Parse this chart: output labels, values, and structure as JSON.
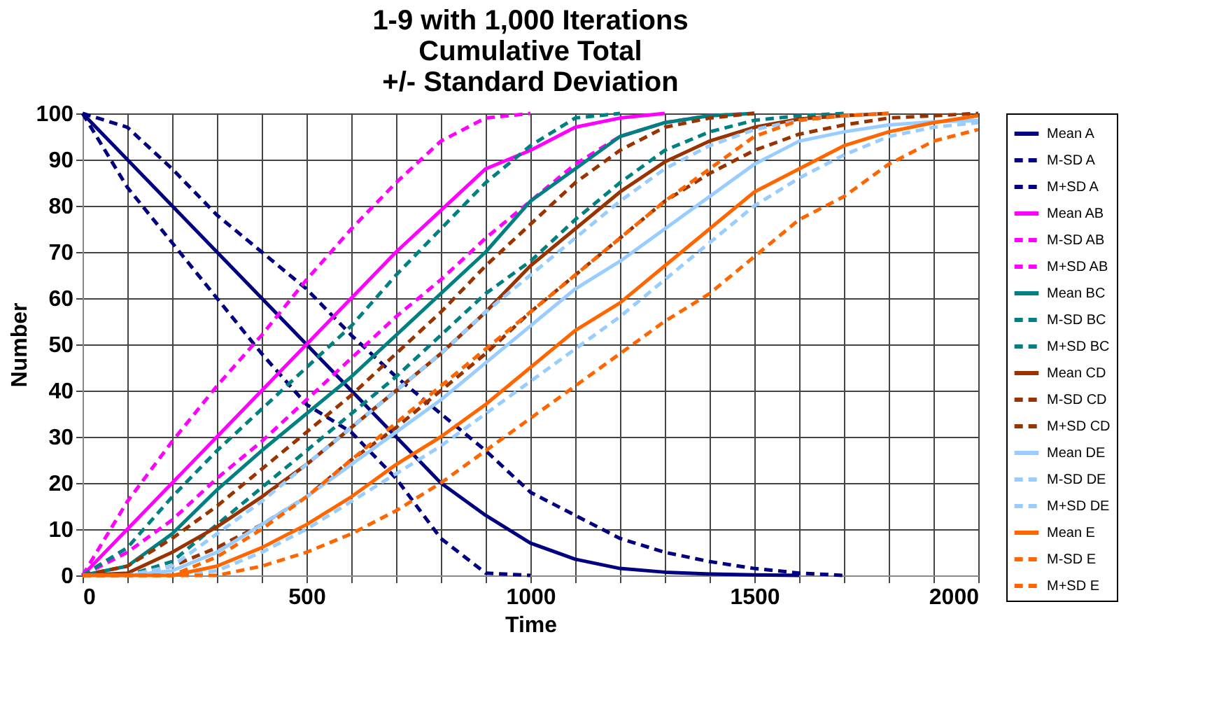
{
  "chart_data": {
    "type": "line",
    "title": [
      "1-9 with 1,000 Iterations",
      "Cumulative Total",
      "+/- Standard Deviation"
    ],
    "xlabel": "Time",
    "ylabel": "Number",
    "x": [
      0,
      100,
      200,
      300,
      400,
      500,
      600,
      700,
      800,
      900,
      1000,
      1100,
      1200,
      1300,
      1400,
      1500,
      1600,
      1700,
      1800,
      1900,
      2000
    ],
    "xlim": [
      0,
      2000
    ],
    "ylim": [
      0,
      100
    ],
    "xticks": [
      0,
      {
        "value": 100,
        "label": null
      },
      {
        "value": 200,
        "label": null
      },
      {
        "value": 300,
        "label": null
      },
      {
        "value": 400,
        "label": null
      },
      500,
      {
        "value": 600,
        "label": null
      },
      {
        "value": 700,
        "label": null
      },
      {
        "value": 800,
        "label": null
      },
      {
        "value": 900,
        "label": null
      },
      1000,
      {
        "value": 1100,
        "label": null
      },
      {
        "value": 1200,
        "label": null
      },
      {
        "value": 1300,
        "label": null
      },
      {
        "value": 1400,
        "label": null
      },
      1500,
      {
        "value": 1600,
        "label": null
      },
      {
        "value": 1700,
        "label": null
      },
      {
        "value": 1800,
        "label": null
      },
      {
        "value": 1900,
        "label": null
      },
      2000
    ],
    "yticks": [
      0,
      10,
      20,
      30,
      40,
      50,
      60,
      70,
      80,
      90,
      100
    ],
    "grid": true,
    "legend": "right",
    "marker": "none",
    "series": [
      {
        "name": "Mean A",
        "color": "#000080",
        "line_style": "solid",
        "values": [
          100,
          90,
          80,
          70,
          60,
          50,
          40,
          30,
          20,
          13,
          7,
          3.5,
          1.5,
          0.7,
          0.3,
          0.1,
          0,
          null,
          null,
          null,
          null
        ]
      },
      {
        "name": "M-SD A",
        "color": "#000080",
        "line_style": "dashed",
        "values": [
          100,
          84,
          72,
          60,
          48,
          37,
          31,
          21,
          8,
          0.5,
          0,
          null,
          null,
          null,
          null,
          null,
          null,
          null,
          null,
          null,
          null
        ]
      },
      {
        "name": "M+SD A",
        "color": "#000080",
        "line_style": "dashed",
        "values": [
          100,
          97,
          88,
          78,
          70,
          62,
          52,
          43,
          35,
          27,
          18,
          13,
          8,
          5,
          3,
          1.5,
          0.5,
          0,
          null,
          null,
          null
        ]
      },
      {
        "name": "Mean AB",
        "color": "#ff00ff",
        "line_style": "solid",
        "values": [
          0,
          10,
          20,
          30,
          40,
          50,
          60,
          70,
          79,
          88,
          92,
          97,
          99,
          100,
          null,
          null,
          null,
          null,
          null,
          null,
          null
        ]
      },
      {
        "name": "M-SD AB",
        "color": "#ff00ff",
        "line_style": "dashed",
        "values": [
          0,
          5,
          12,
          21,
          29,
          38,
          47,
          56,
          64,
          73,
          81,
          89,
          95,
          98,
          99.5,
          100,
          null,
          null,
          null,
          null,
          null
        ]
      },
      {
        "name": "M+SD AB",
        "color": "#ff00ff",
        "line_style": "dashed",
        "values": [
          0,
          16,
          29,
          41,
          52,
          64,
          75,
          85,
          94,
          99,
          100,
          null,
          null,
          null,
          null,
          null,
          null,
          null,
          null,
          null,
          null
        ]
      },
      {
        "name": "Mean BC",
        "color": "#008080",
        "line_style": "solid",
        "values": [
          0,
          2,
          9,
          18.5,
          27,
          35,
          43,
          52,
          61,
          70,
          81,
          88,
          95,
          98,
          99.5,
          100,
          null,
          null,
          null,
          null,
          null
        ]
      },
      {
        "name": "M-SD BC",
        "color": "#008080",
        "line_style": "dashed",
        "values": [
          0,
          0,
          3,
          11,
          19,
          27,
          35,
          43,
          52,
          61,
          68,
          77,
          85,
          92,
          96,
          98.5,
          99.5,
          100,
          null,
          null,
          null
        ]
      },
      {
        "name": "M+SD BC",
        "color": "#008080",
        "line_style": "dashed",
        "values": [
          0,
          6,
          17,
          27,
          36,
          45,
          54,
          65,
          75,
          85,
          93,
          99,
          100,
          null,
          null,
          null,
          null,
          null,
          null,
          null,
          null
        ]
      },
      {
        "name": "Mean CD",
        "color": "#993300",
        "line_style": "solid",
        "values": [
          0,
          0.5,
          5,
          10.5,
          17,
          24,
          32,
          40,
          48,
          57,
          67,
          75,
          83,
          89.5,
          94,
          97,
          98.8,
          99.5,
          100,
          null,
          null
        ]
      },
      {
        "name": "M-SD CD",
        "color": "#993300",
        "line_style": "dashed",
        "values": [
          0,
          0,
          2,
          6,
          11,
          17,
          25,
          32,
          40,
          48,
          57,
          65,
          73,
          81,
          87,
          92,
          95.5,
          97.5,
          99,
          99.5,
          100
        ]
      },
      {
        "name": "M+SD CD",
        "color": "#993300",
        "line_style": "dashed",
        "values": [
          0,
          2,
          8,
          15,
          23,
          31,
          39,
          48,
          57,
          67,
          76,
          85,
          92,
          97,
          99,
          100,
          null,
          null,
          null,
          null,
          null
        ]
      },
      {
        "name": "Mean DE",
        "color": "#99ccff",
        "line_style": "solid",
        "values": [
          0,
          0,
          1,
          5,
          11,
          17,
          24,
          31,
          38,
          46,
          54,
          62,
          68,
          75,
          82,
          89,
          94,
          96,
          97.5,
          98.2,
          98.5
        ]
      },
      {
        "name": "M-SD DE",
        "color": "#99ccff",
        "line_style": "dashed",
        "values": [
          0,
          0,
          0,
          1,
          5,
          10,
          16,
          22,
          28,
          35,
          42,
          49,
          56,
          64,
          72,
          80,
          86,
          91,
          95,
          97,
          98
        ]
      },
      {
        "name": "M+SD DE",
        "color": "#99ccff",
        "line_style": "dashed",
        "values": [
          0,
          0,
          2,
          9,
          16,
          24,
          32,
          40,
          48,
          57,
          65,
          73,
          81,
          88,
          93,
          96.5,
          98.5,
          99.5,
          100,
          null,
          null
        ]
      },
      {
        "name": "Mean E",
        "color": "#ff6600",
        "line_style": "solid",
        "values": [
          0,
          0,
          0,
          2,
          6,
          11,
          17,
          24,
          30,
          37,
          45,
          53,
          59,
          67,
          75,
          83,
          88,
          93,
          96,
          98,
          99.5
        ]
      },
      {
        "name": "M-SD E",
        "color": "#ff6600",
        "line_style": "dashed",
        "values": [
          0,
          0,
          0,
          0,
          2,
          5,
          9,
          14,
          20,
          27,
          34,
          41,
          48,
          55,
          61,
          69,
          77,
          82,
          89,
          94,
          96.5
        ]
      },
      {
        "name": "M+SD E",
        "color": "#ff6600",
        "line_style": "dashed",
        "values": [
          0,
          0,
          0,
          4,
          10,
          17,
          25,
          33,
          41,
          49,
          57,
          65,
          73,
          81,
          88,
          95,
          98.5,
          99.5,
          100,
          null,
          null
        ]
      }
    ]
  }
}
